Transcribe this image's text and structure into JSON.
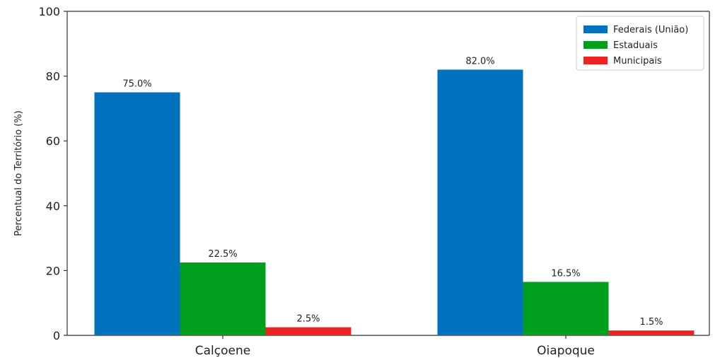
{
  "chart_data": {
    "type": "bar",
    "categories": [
      "Calçoene",
      "Oiapoque"
    ],
    "series": [
      {
        "name": "Federais (União)",
        "values": [
          75.0,
          82.0
        ],
        "labels": [
          "75.0%",
          "82.0%"
        ],
        "color": "#0072bd"
      },
      {
        "name": "Estaduais",
        "values": [
          22.5,
          16.5
        ],
        "labels": [
          "22.5%",
          "16.5%"
        ],
        "color": "#00a01e"
      },
      {
        "name": "Municipais",
        "values": [
          2.5,
          1.5
        ],
        "labels": [
          "2.5%",
          "1.5%"
        ],
        "color": "#ee2222"
      }
    ],
    "title": "",
    "xlabel": "",
    "ylabel": "Percentual do Território (%)",
    "ylim": [
      0,
      100
    ],
    "yticks": [
      "0",
      "20",
      "40",
      "60",
      "80",
      "100"
    ],
    "grid": false,
    "legend_position": "top-right"
  }
}
